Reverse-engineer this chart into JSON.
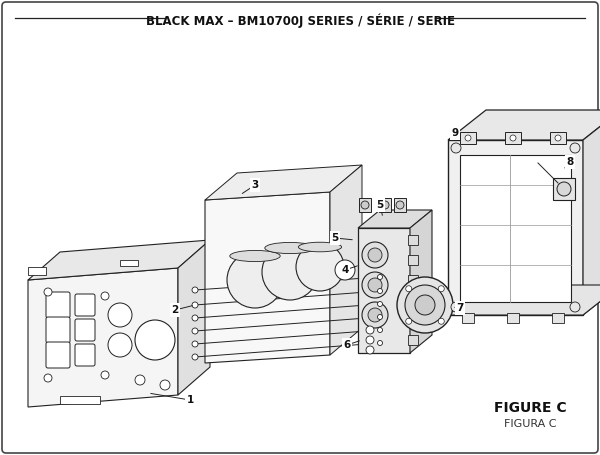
{
  "title": "BLACK MAX – BM10700J SERIES / SÉRIE / SERIE",
  "title_fontsize": 8.5,
  "bg_color": "#ffffff",
  "border_color": "#333333",
  "figure_label": "FIGURE C",
  "figure_sublabel": "FIGURA C"
}
